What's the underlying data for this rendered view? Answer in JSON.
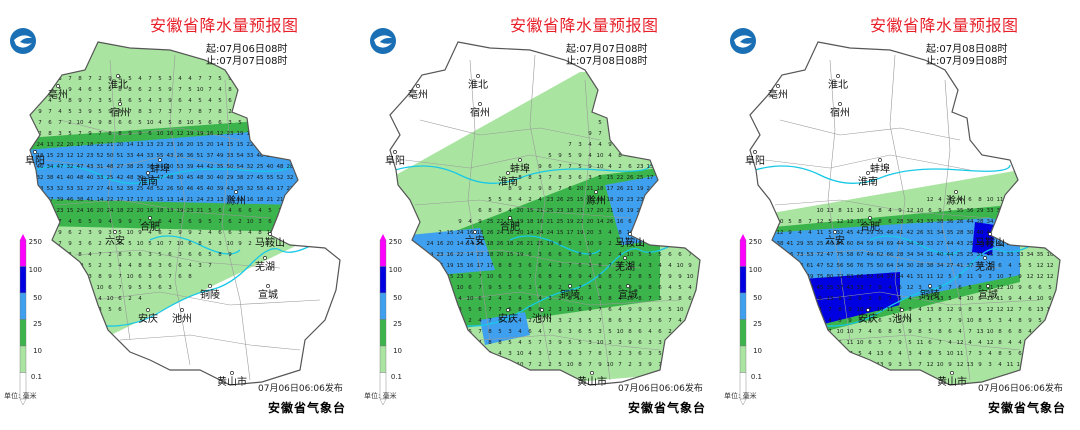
{
  "panels": [
    {
      "title": "安徽省降水量预报图",
      "start": "起:07月06日08时",
      "end": "止:07月07日08时",
      "publish": "07月06日06:06发布"
    },
    {
      "title": "安徽省降水量预报图",
      "start": "起:07月07日08时",
      "end": "止:07月08日08时",
      "publish": "07月06日06:06发布"
    },
    {
      "title": "安徽省降水量预报图",
      "start": "起:07月08日08时",
      "end": "止:07月09日08时",
      "publish": "07月06日06:06发布"
    }
  ],
  "legend": {
    "unit": "单位: 毫米",
    "levels": [
      "250",
      "100",
      "50",
      "25",
      "10",
      "0.1"
    ],
    "colors": [
      "#ff00ff",
      "#0000e0",
      "#3fa0ef",
      "#3cb44c",
      "#a9e5a0",
      "#ffffff"
    ]
  },
  "org": "安徽省气象台",
  "cities": [
    "亳州",
    "淮北",
    "宿州",
    "阜阳",
    "蚌埠",
    "淮南",
    "滁州",
    "合肥",
    "六安",
    "马鞍山",
    "芜湖",
    "铜陵",
    "宣城",
    "安庆",
    "池州",
    "黄山市"
  ],
  "colors": {
    "title_red": "#e8202a",
    "light_green": "#a9e5a0",
    "green": "#3cb44c",
    "blue": "#3fa0ef",
    "dark_blue": "#0000e0",
    "river": "#19c8e6"
  }
}
